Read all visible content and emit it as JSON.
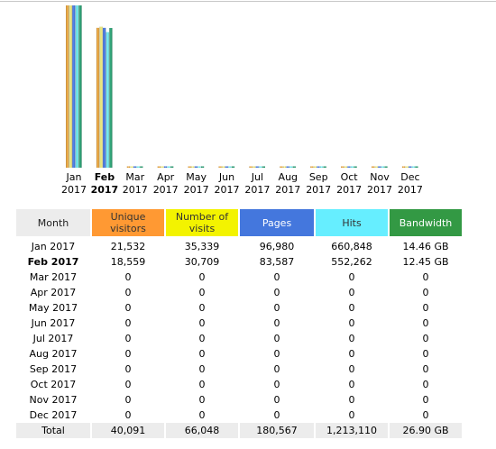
{
  "chart_data": {
    "type": "bar",
    "categories": [
      "Jan 2017",
      "Feb 2017",
      "Mar 2017",
      "Apr 2017",
      "May 2017",
      "Jun 2017",
      "Jul 2017",
      "Aug 2017",
      "Sep 2017",
      "Oct 2017",
      "Nov 2017",
      "Dec 2017"
    ],
    "current": "Feb 2017",
    "series": [
      {
        "name": "Unique visitors",
        "color": "#e8a447",
        "values": [
          21532,
          18559,
          0,
          0,
          0,
          0,
          0,
          0,
          0,
          0,
          0,
          0
        ]
      },
      {
        "name": "Number of visits",
        "color": "#e8e07a",
        "values": [
          35339,
          30709,
          0,
          0,
          0,
          0,
          0,
          0,
          0,
          0,
          0,
          0
        ]
      },
      {
        "name": "Pages",
        "color": "#4a78d8",
        "values": [
          96980,
          83587,
          0,
          0,
          0,
          0,
          0,
          0,
          0,
          0,
          0,
          0
        ]
      },
      {
        "name": "Hits",
        "color": "#6fe6ee",
        "values": [
          660848,
          552262,
          0,
          0,
          0,
          0,
          0,
          0,
          0,
          0,
          0,
          0
        ]
      },
      {
        "name": "Bandwidth",
        "color": "#2e9a70",
        "values": [
          14.46,
          12.45,
          0,
          0,
          0,
          0,
          0,
          0,
          0,
          0,
          0,
          0
        ],
        "unit": "GB"
      }
    ]
  },
  "x_labels": [
    {
      "month": "Jan",
      "year": "2017"
    },
    {
      "month": "Feb",
      "year": "2017"
    },
    {
      "month": "Mar",
      "year": "2017"
    },
    {
      "month": "Apr",
      "year": "2017"
    },
    {
      "month": "May",
      "year": "2017"
    },
    {
      "month": "Jun",
      "year": "2017"
    },
    {
      "month": "Jul",
      "year": "2017"
    },
    {
      "month": "Aug",
      "year": "2017"
    },
    {
      "month": "Sep",
      "year": "2017"
    },
    {
      "month": "Oct",
      "year": "2017"
    },
    {
      "month": "Nov",
      "year": "2017"
    },
    {
      "month": "Dec",
      "year": "2017"
    }
  ],
  "table": {
    "headers": {
      "month": "Month",
      "unique_visitors": "Unique visitors",
      "number_of_visits": "Number of visits",
      "pages": "Pages",
      "hits": "Hits",
      "bandwidth": "Bandwidth"
    },
    "rows": [
      [
        "Jan 2017",
        "21,532",
        "35,339",
        "96,980",
        "660,848",
        "14.46 GB"
      ],
      [
        "Feb 2017",
        "18,559",
        "30,709",
        "83,587",
        "552,262",
        "12.45 GB"
      ],
      [
        "Mar 2017",
        "0",
        "0",
        "0",
        "0",
        "0"
      ],
      [
        "Apr 2017",
        "0",
        "0",
        "0",
        "0",
        "0"
      ],
      [
        "May 2017",
        "0",
        "0",
        "0",
        "0",
        "0"
      ],
      [
        "Jun 2017",
        "0",
        "0",
        "0",
        "0",
        "0"
      ],
      [
        "Jul 2017",
        "0",
        "0",
        "0",
        "0",
        "0"
      ],
      [
        "Aug 2017",
        "0",
        "0",
        "0",
        "0",
        "0"
      ],
      [
        "Sep 2017",
        "0",
        "0",
        "0",
        "0",
        "0"
      ],
      [
        "Oct 2017",
        "0",
        "0",
        "0",
        "0",
        "0"
      ],
      [
        "Nov 2017",
        "0",
        "0",
        "0",
        "0",
        "0"
      ],
      [
        "Dec 2017",
        "0",
        "0",
        "0",
        "0",
        "0"
      ]
    ],
    "total": [
      "Total",
      "40,091",
      "66,048",
      "180,567",
      "1,213,110",
      "26.90 GB"
    ]
  }
}
